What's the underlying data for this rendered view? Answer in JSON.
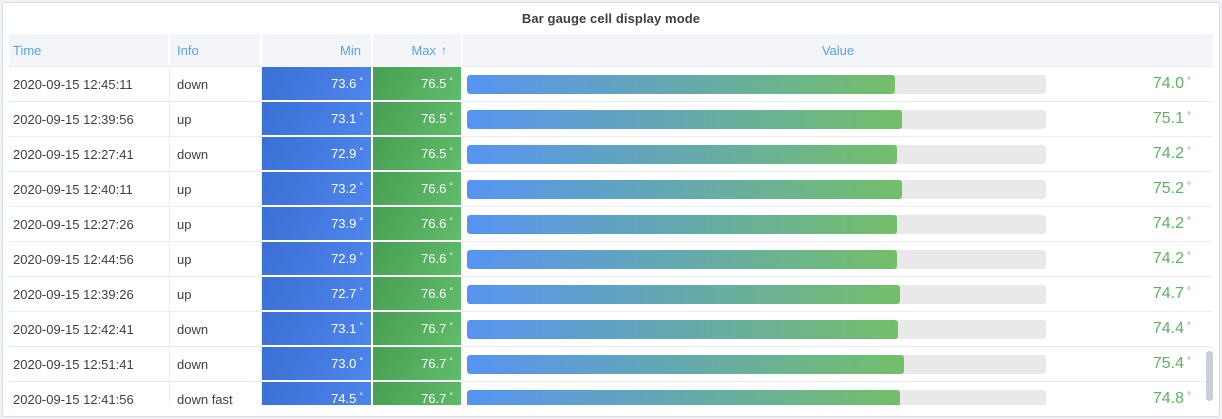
{
  "panel": {
    "title": "Bar gauge cell display mode"
  },
  "table": {
    "header": {
      "time": "Time",
      "info": "Info",
      "min": "Min",
      "max": "Max",
      "value": "Value",
      "sort_icon": "↑",
      "sorted_column": "Max",
      "sort_direction": "ascending"
    },
    "unit": "°",
    "gauge": {
      "min": 0,
      "max": 100
    },
    "rows": [
      {
        "time": "2020-09-15 12:45:11",
        "info": "down",
        "min": "73.6",
        "max": "76.5",
        "value": "74.0"
      },
      {
        "time": "2020-09-15 12:39:56",
        "info": "up",
        "min": "73.1",
        "max": "76.5",
        "value": "75.1"
      },
      {
        "time": "2020-09-15 12:27:41",
        "info": "down",
        "min": "72.9",
        "max": "76.5",
        "value": "74.2"
      },
      {
        "time": "2020-09-15 12:40:11",
        "info": "up",
        "min": "73.2",
        "max": "76.6",
        "value": "75.2"
      },
      {
        "time": "2020-09-15 12:27:26",
        "info": "up",
        "min": "73.9",
        "max": "76.6",
        "value": "74.2"
      },
      {
        "time": "2020-09-15 12:44:56",
        "info": "up",
        "min": "72.9",
        "max": "76.6",
        "value": "74.2"
      },
      {
        "time": "2020-09-15 12:39:26",
        "info": "up",
        "min": "72.7",
        "max": "76.6",
        "value": "74.7"
      },
      {
        "time": "2020-09-15 12:42:41",
        "info": "down",
        "min": "73.1",
        "max": "76.7",
        "value": "74.4"
      },
      {
        "time": "2020-09-15 12:51:41",
        "info": "down",
        "min": "73.0",
        "max": "76.7",
        "value": "75.4"
      },
      {
        "time": "2020-09-15 12:41:56",
        "info": "down fast",
        "min": "74.5",
        "max": "76.7",
        "value": "74.8"
      }
    ]
  },
  "colors": {
    "header_bg": "#f3f5f9",
    "header_text": "#57a3e8",
    "min_cell_gradient": [
      "#3a6fd3",
      "#4f86ec"
    ],
    "max_cell_gradient": [
      "#489e53",
      "#60bd6a"
    ],
    "bar_gradient": [
      "#5794f2",
      "#73bf69"
    ],
    "bar_track": "#e9e9e9",
    "value_text": "#5cb25e"
  }
}
